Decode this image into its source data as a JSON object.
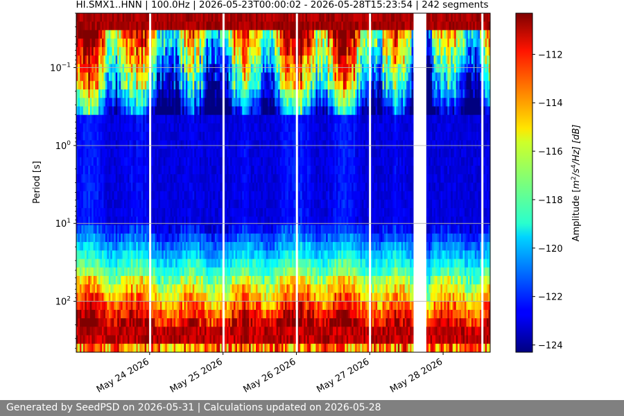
{
  "chart_data": {
    "type": "heatmap",
    "title": "HI.SMX1..HNN | 100.0Hz | 2026-05-23T00:00:02 - 2026-05-28T15:23:54 | 242 segments",
    "ylabel": "Period [s]",
    "colorbar_label": "Amplitude [m²/s⁴/Hz] [dB]",
    "colorbar_label_parts": {
      "prefix": "Amplitude [",
      "m": "m",
      "exp1": "2",
      "mid": "/s",
      "exp2": "4",
      "suffix": "/Hz] [dB]"
    },
    "y_scale": "log",
    "y_inverted": true,
    "ylim": [
      0.02,
      450
    ],
    "y_ticks": [
      {
        "value": 0.1,
        "base": "10",
        "exp": "−1"
      },
      {
        "value": 1,
        "base": "10",
        "exp": "0"
      },
      {
        "value": 10,
        "base": "10",
        "exp": "1"
      },
      {
        "value": 100,
        "base": "10",
        "exp": "2"
      }
    ],
    "x_range": [
      "2026-05-23T00:00:02",
      "2026-05-28T15:23:54"
    ],
    "x_ticks": [
      {
        "date": "2026-05-24",
        "label": "May 24 2026"
      },
      {
        "date": "2026-05-25",
        "label": "May 25 2026"
      },
      {
        "date": "2026-05-26",
        "label": "May 26 2026"
      },
      {
        "date": "2026-05-27",
        "label": "May 27 2026"
      },
      {
        "date": "2026-05-28",
        "label": "May 28 2026"
      }
    ],
    "gaps": [
      [
        "2026-05-23T23:50",
        "2026-05-23T23:59"
      ],
      [
        "2026-05-24T23:50",
        "2026-05-24T23:59"
      ],
      [
        "2026-05-25T23:50",
        "2026-05-25T23:59"
      ],
      [
        "2026-05-26T23:45",
        "2026-05-27T00:00"
      ],
      [
        "2026-05-27T14:20",
        "2026-05-27T18:30"
      ],
      [
        "2026-05-28T12:30",
        "2026-05-28T12:40"
      ]
    ],
    "colorbar": {
      "colormap": "jet",
      "range": [
        -124.3,
        -110.3
      ],
      "ticks": [
        -112,
        -114,
        -116,
        -118,
        -120,
        -122,
        -124
      ],
      "tick_labels": [
        "−112",
        "−114",
        "−116",
        "−118",
        "−120",
        "−122",
        "−124"
      ]
    },
    "grid": "horizontal major lines at decades",
    "segments": 242
  },
  "footer": {
    "text": "Generated by SeedPSD on 2026-05-31 | Calculations updated on 2026-05-28"
  }
}
